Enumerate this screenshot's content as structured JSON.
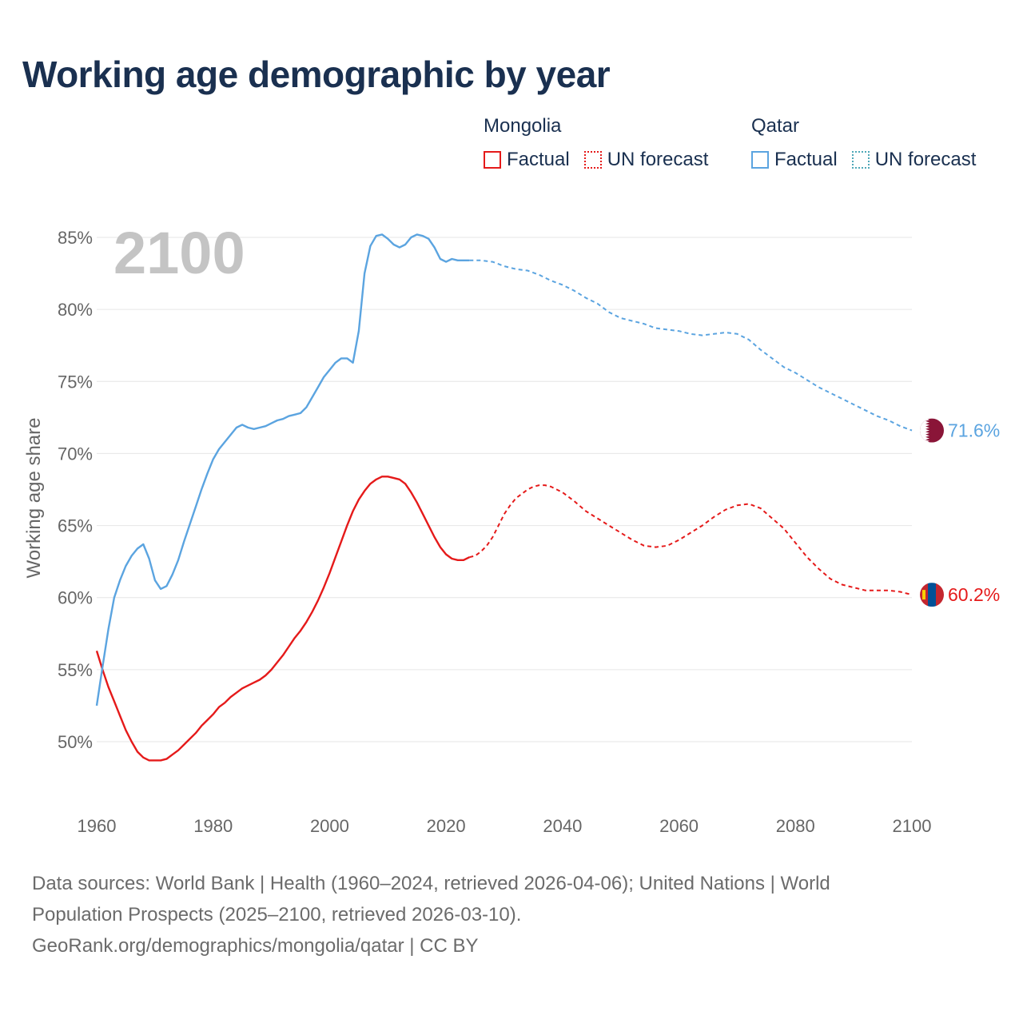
{
  "header": {
    "title": "Working age demographic by year"
  },
  "legend": [
    {
      "country": "Mongolia",
      "color": "#e51a1a",
      "factual_label": "Factual",
      "forecast_label": "UN forecast"
    },
    {
      "country": "Qatar",
      "color": "#5ba4e0",
      "factual_label": "Factual",
      "forecast_label": "UN forecast"
    }
  ],
  "footer": {
    "source_line1": "Data sources: World Bank | Health (1960–2024, retrieved 2026-04-06); United Nations | World",
    "source_line2": "Population Prospects (2025–2100, retrieved 2026-03-10).",
    "credit": "GeoRank.org/demographics/mongolia/qatar | CC BY"
  },
  "flags": {
    "qatar": "qatar-flag",
    "mongolia": "mongolia-flag"
  },
  "chart_data": {
    "type": "line",
    "title": "Working age demographic by year",
    "xlabel": "",
    "ylabel": "Working age share",
    "year_watermark": "2100",
    "xlim": [
      1960,
      2100
    ],
    "ylim": [
      45,
      87
    ],
    "x_ticks": [
      1960,
      1980,
      2000,
      2020,
      2040,
      2060,
      2080,
      2100
    ],
    "y_ticks": [
      50,
      55,
      60,
      65,
      70,
      75,
      80,
      85
    ],
    "y_tick_labels": [
      "50%",
      "55%",
      "60%",
      "65%",
      "70%",
      "75%",
      "80%",
      "85%"
    ],
    "grid": true,
    "series": [
      {
        "name": "Mongolia",
        "color": "#e51a1a",
        "end_label": "60.2%",
        "flag": "mongolia-flag",
        "factual": [
          [
            1960,
            56.3
          ],
          [
            1961,
            55.0
          ],
          [
            1962,
            53.8
          ],
          [
            1963,
            52.8
          ],
          [
            1964,
            51.8
          ],
          [
            1965,
            50.8
          ],
          [
            1966,
            50.0
          ],
          [
            1967,
            49.3
          ],
          [
            1968,
            48.9
          ],
          [
            1969,
            48.7
          ],
          [
            1970,
            48.7
          ],
          [
            1971,
            48.7
          ],
          [
            1972,
            48.8
          ],
          [
            1973,
            49.1
          ],
          [
            1974,
            49.4
          ],
          [
            1975,
            49.8
          ],
          [
            1976,
            50.2
          ],
          [
            1977,
            50.6
          ],
          [
            1978,
            51.1
          ],
          [
            1979,
            51.5
          ],
          [
            1980,
            51.9
          ],
          [
            1981,
            52.4
          ],
          [
            1982,
            52.7
          ],
          [
            1983,
            53.1
          ],
          [
            1984,
            53.4
          ],
          [
            1985,
            53.7
          ],
          [
            1986,
            53.9
          ],
          [
            1987,
            54.1
          ],
          [
            1988,
            54.3
          ],
          [
            1989,
            54.6
          ],
          [
            1990,
            55.0
          ],
          [
            1991,
            55.5
          ],
          [
            1992,
            56.0
          ],
          [
            1993,
            56.6
          ],
          [
            1994,
            57.2
          ],
          [
            1995,
            57.7
          ],
          [
            1996,
            58.3
          ],
          [
            1997,
            59.0
          ],
          [
            1998,
            59.8
          ],
          [
            1999,
            60.7
          ],
          [
            2000,
            61.7
          ],
          [
            2001,
            62.8
          ],
          [
            2002,
            63.9
          ],
          [
            2003,
            65.0
          ],
          [
            2004,
            66.0
          ],
          [
            2005,
            66.8
          ],
          [
            2006,
            67.4
          ],
          [
            2007,
            67.9
          ],
          [
            2008,
            68.2
          ],
          [
            2009,
            68.4
          ],
          [
            2010,
            68.4
          ],
          [
            2011,
            68.3
          ],
          [
            2012,
            68.2
          ],
          [
            2013,
            67.9
          ],
          [
            2014,
            67.3
          ],
          [
            2015,
            66.6
          ],
          [
            2016,
            65.8
          ],
          [
            2017,
            65.0
          ],
          [
            2018,
            64.2
          ],
          [
            2019,
            63.5
          ],
          [
            2020,
            63.0
          ],
          [
            2021,
            62.7
          ],
          [
            2022,
            62.6
          ],
          [
            2023,
            62.6
          ],
          [
            2024,
            62.8
          ]
        ],
        "forecast": [
          [
            2024,
            62.8
          ],
          [
            2025,
            62.9
          ],
          [
            2026,
            63.2
          ],
          [
            2027,
            63.6
          ],
          [
            2028,
            64.2
          ],
          [
            2029,
            65.0
          ],
          [
            2030,
            65.8
          ],
          [
            2031,
            66.4
          ],
          [
            2032,
            66.9
          ],
          [
            2033,
            67.2
          ],
          [
            2034,
            67.5
          ],
          [
            2035,
            67.7
          ],
          [
            2036,
            67.8
          ],
          [
            2037,
            67.8
          ],
          [
            2038,
            67.7
          ],
          [
            2039,
            67.5
          ],
          [
            2040,
            67.3
          ],
          [
            2042,
            66.7
          ],
          [
            2044,
            66.0
          ],
          [
            2046,
            65.5
          ],
          [
            2048,
            65.0
          ],
          [
            2050,
            64.5
          ],
          [
            2052,
            64.0
          ],
          [
            2054,
            63.6
          ],
          [
            2056,
            63.5
          ],
          [
            2058,
            63.6
          ],
          [
            2060,
            64.0
          ],
          [
            2062,
            64.5
          ],
          [
            2064,
            65.0
          ],
          [
            2066,
            65.6
          ],
          [
            2068,
            66.1
          ],
          [
            2070,
            66.4
          ],
          [
            2072,
            66.5
          ],
          [
            2074,
            66.2
          ],
          [
            2076,
            65.5
          ],
          [
            2078,
            64.8
          ],
          [
            2080,
            63.8
          ],
          [
            2082,
            62.8
          ],
          [
            2084,
            62.0
          ],
          [
            2086,
            61.3
          ],
          [
            2088,
            60.9
          ],
          [
            2090,
            60.7
          ],
          [
            2092,
            60.5
          ],
          [
            2094,
            60.5
          ],
          [
            2096,
            60.5
          ],
          [
            2098,
            60.4
          ],
          [
            2100,
            60.2
          ]
        ]
      },
      {
        "name": "Qatar",
        "color": "#5ba4e0",
        "end_label": "71.6%",
        "flag": "qatar-flag",
        "factual": [
          [
            1960,
            52.5
          ],
          [
            1961,
            55.2
          ],
          [
            1962,
            57.8
          ],
          [
            1963,
            60.0
          ],
          [
            1964,
            61.2
          ],
          [
            1965,
            62.2
          ],
          [
            1966,
            62.9
          ],
          [
            1967,
            63.4
          ],
          [
            1968,
            63.7
          ],
          [
            1969,
            62.7
          ],
          [
            1970,
            61.2
          ],
          [
            1971,
            60.6
          ],
          [
            1972,
            60.8
          ],
          [
            1973,
            61.6
          ],
          [
            1974,
            62.6
          ],
          [
            1975,
            63.9
          ],
          [
            1976,
            65.1
          ],
          [
            1977,
            66.3
          ],
          [
            1978,
            67.5
          ],
          [
            1979,
            68.6
          ],
          [
            1980,
            69.6
          ],
          [
            1981,
            70.3
          ],
          [
            1982,
            70.8
          ],
          [
            1983,
            71.3
          ],
          [
            1984,
            71.8
          ],
          [
            1985,
            72.0
          ],
          [
            1986,
            71.8
          ],
          [
            1987,
            71.7
          ],
          [
            1988,
            71.8
          ],
          [
            1989,
            71.9
          ],
          [
            1990,
            72.1
          ],
          [
            1991,
            72.3
          ],
          [
            1992,
            72.4
          ],
          [
            1993,
            72.6
          ],
          [
            1994,
            72.7
          ],
          [
            1995,
            72.8
          ],
          [
            1996,
            73.2
          ],
          [
            1997,
            73.9
          ],
          [
            1998,
            74.6
          ],
          [
            1999,
            75.3
          ],
          [
            2000,
            75.8
          ],
          [
            2001,
            76.3
          ],
          [
            2002,
            76.6
          ],
          [
            2003,
            76.6
          ],
          [
            2004,
            76.3
          ],
          [
            2005,
            78.5
          ],
          [
            2006,
            82.5
          ],
          [
            2007,
            84.4
          ],
          [
            2008,
            85.1
          ],
          [
            2009,
            85.2
          ],
          [
            2010,
            84.9
          ],
          [
            2011,
            84.5
          ],
          [
            2012,
            84.3
          ],
          [
            2013,
            84.5
          ],
          [
            2014,
            85.0
          ],
          [
            2015,
            85.2
          ],
          [
            2016,
            85.1
          ],
          [
            2017,
            84.9
          ],
          [
            2018,
            84.3
          ],
          [
            2019,
            83.5
          ],
          [
            2020,
            83.3
          ],
          [
            2021,
            83.5
          ],
          [
            2022,
            83.4
          ],
          [
            2023,
            83.4
          ],
          [
            2024,
            83.4
          ]
        ],
        "forecast": [
          [
            2024,
            83.4
          ],
          [
            2026,
            83.4
          ],
          [
            2028,
            83.3
          ],
          [
            2030,
            83.0
          ],
          [
            2032,
            82.8
          ],
          [
            2034,
            82.7
          ],
          [
            2036,
            82.4
          ],
          [
            2038,
            82.0
          ],
          [
            2040,
            81.7
          ],
          [
            2042,
            81.3
          ],
          [
            2044,
            80.8
          ],
          [
            2046,
            80.4
          ],
          [
            2048,
            79.8
          ],
          [
            2050,
            79.4
          ],
          [
            2052,
            79.2
          ],
          [
            2054,
            79.0
          ],
          [
            2056,
            78.7
          ],
          [
            2058,
            78.6
          ],
          [
            2060,
            78.5
          ],
          [
            2062,
            78.3
          ],
          [
            2064,
            78.2
          ],
          [
            2066,
            78.3
          ],
          [
            2068,
            78.4
          ],
          [
            2070,
            78.3
          ],
          [
            2072,
            77.9
          ],
          [
            2074,
            77.2
          ],
          [
            2076,
            76.6
          ],
          [
            2078,
            76.0
          ],
          [
            2080,
            75.6
          ],
          [
            2082,
            75.1
          ],
          [
            2084,
            74.6
          ],
          [
            2086,
            74.2
          ],
          [
            2088,
            73.8
          ],
          [
            2090,
            73.4
          ],
          [
            2092,
            73.0
          ],
          [
            2094,
            72.6
          ],
          [
            2096,
            72.3
          ],
          [
            2098,
            71.9
          ],
          [
            2100,
            71.6
          ]
        ]
      }
    ]
  }
}
